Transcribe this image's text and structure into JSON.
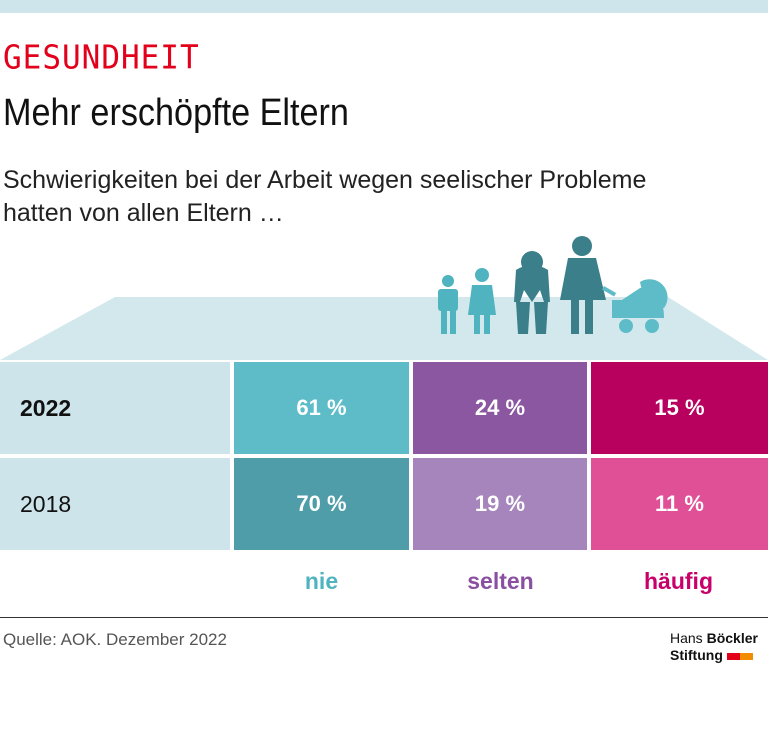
{
  "header": {
    "kicker": "GESUNDHEIT",
    "title": "Mehr erschöpfte Eltern",
    "subtitle_line1": "Schwierigkeiten bei der Arbeit wegen seelischer Probleme",
    "subtitle_line2": "hatten von allen Eltern …"
  },
  "chart_data": {
    "type": "table",
    "categories": [
      "nie",
      "selten",
      "häufig"
    ],
    "rows": [
      {
        "year": "2022",
        "values": [
          61,
          24,
          15
        ],
        "labels": [
          "61 %",
          "24 %",
          "15 %"
        ]
      },
      {
        "year": "2018",
        "values": [
          70,
          19,
          11
        ],
        "labels": [
          "70 %",
          "19 %",
          "11 %"
        ]
      }
    ],
    "colors": {
      "nie": [
        "#5ebcc9",
        "#4e9da8"
      ],
      "selten": [
        "#8a57a0",
        "#a585bb"
      ],
      "häufig": [
        "#b8005f",
        "#e05096"
      ],
      "legend": [
        "#4fb3c0",
        "#8a4fa0",
        "#c8006a"
      ],
      "row_label": "#cde4ea"
    }
  },
  "footer": {
    "source": "Quelle: AOK. Dezember 2022",
    "logo_line1_a": "Hans ",
    "logo_line1_b": "Böckler",
    "logo_line2": "Stiftung"
  }
}
